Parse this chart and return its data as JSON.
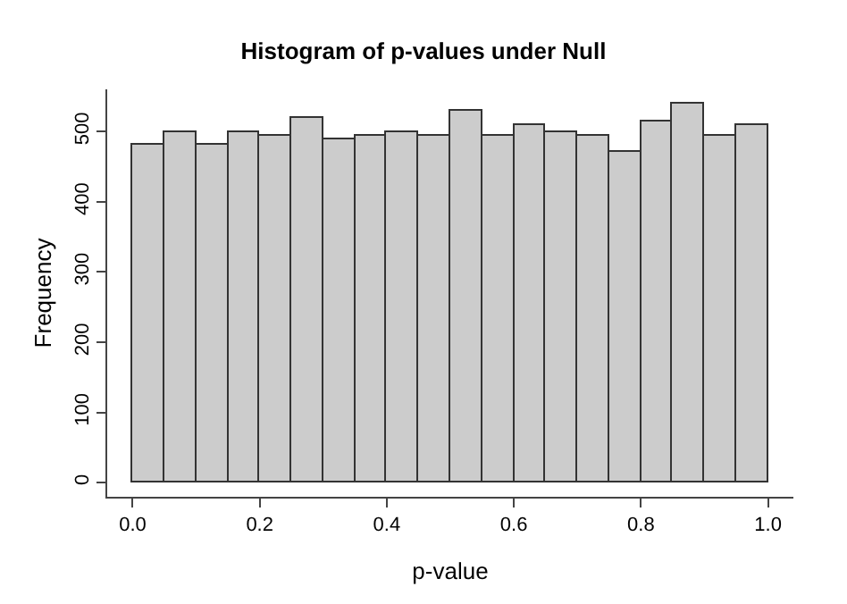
{
  "chart_data": {
    "type": "histogram",
    "title": "Histogram of p-values under Null",
    "xlabel": "p-value",
    "ylabel": "Frequency",
    "bins": [
      0,
      0.05,
      0.1,
      0.15,
      0.2,
      0.25,
      0.3,
      0.35,
      0.4,
      0.45,
      0.5,
      0.55,
      0.6,
      0.65,
      0.7,
      0.75,
      0.8,
      0.85,
      0.9,
      0.95,
      1.0
    ],
    "values": [
      480,
      500,
      480,
      500,
      495,
      520,
      490,
      495,
      500,
      495,
      530,
      495,
      510,
      500,
      495,
      470,
      515,
      540,
      495,
      510
    ],
    "color": "#cccccc",
    "xlim": [
      -0.04,
      1.04
    ],
    "ylim": [
      -20,
      560
    ],
    "xticks": [
      {
        "value": 0,
        "label": "0.0"
      },
      0.2,
      0.4,
      0.6,
      0.8,
      {
        "value": 1,
        "label": "1.0"
      }
    ],
    "yticks": [
      0,
      100,
      200,
      300,
      400,
      500
    ]
  }
}
